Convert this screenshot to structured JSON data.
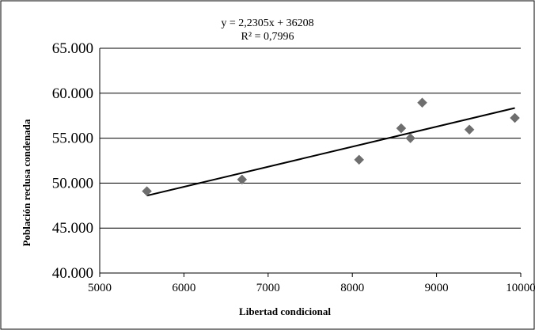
{
  "chart_data": {
    "type": "scatter",
    "xlabel": "Libertad condicional",
    "ylabel": "Población reclusa condenada",
    "xlim": [
      5000,
      10000
    ],
    "ylim": [
      40000,
      65000
    ],
    "x_ticks": [
      5000,
      6000,
      7000,
      8000,
      9000,
      10000
    ],
    "x_tick_labels": [
      "5000",
      "6000",
      "7000",
      "8000",
      "9000",
      "10000"
    ],
    "y_ticks": [
      40000,
      45000,
      50000,
      55000,
      60000,
      65000
    ],
    "y_tick_labels": [
      "40.000",
      "45.000",
      "50.000",
      "55.000",
      "60.000",
      "65.000"
    ],
    "grid": "horizontal",
    "series": [
      {
        "marker": "diamond",
        "color": "#6e6e6e",
        "points": [
          {
            "x": 5560,
            "y": 49100
          },
          {
            "x": 6690,
            "y": 50400
          },
          {
            "x": 8080,
            "y": 52600
          },
          {
            "x": 8580,
            "y": 56100
          },
          {
            "x": 8690,
            "y": 55000
          },
          {
            "x": 8830,
            "y": 58950
          },
          {
            "x": 9390,
            "y": 55950
          },
          {
            "x": 9930,
            "y": 57250
          }
        ]
      }
    ],
    "trendline": {
      "type": "linear",
      "slope": 2.2305,
      "intercept": 36208,
      "x_range": [
        5560,
        9930
      ],
      "color": "#000000",
      "equation_label": "y = 2,2305x + 36208",
      "r2_label": "R² = 0,7996"
    }
  }
}
